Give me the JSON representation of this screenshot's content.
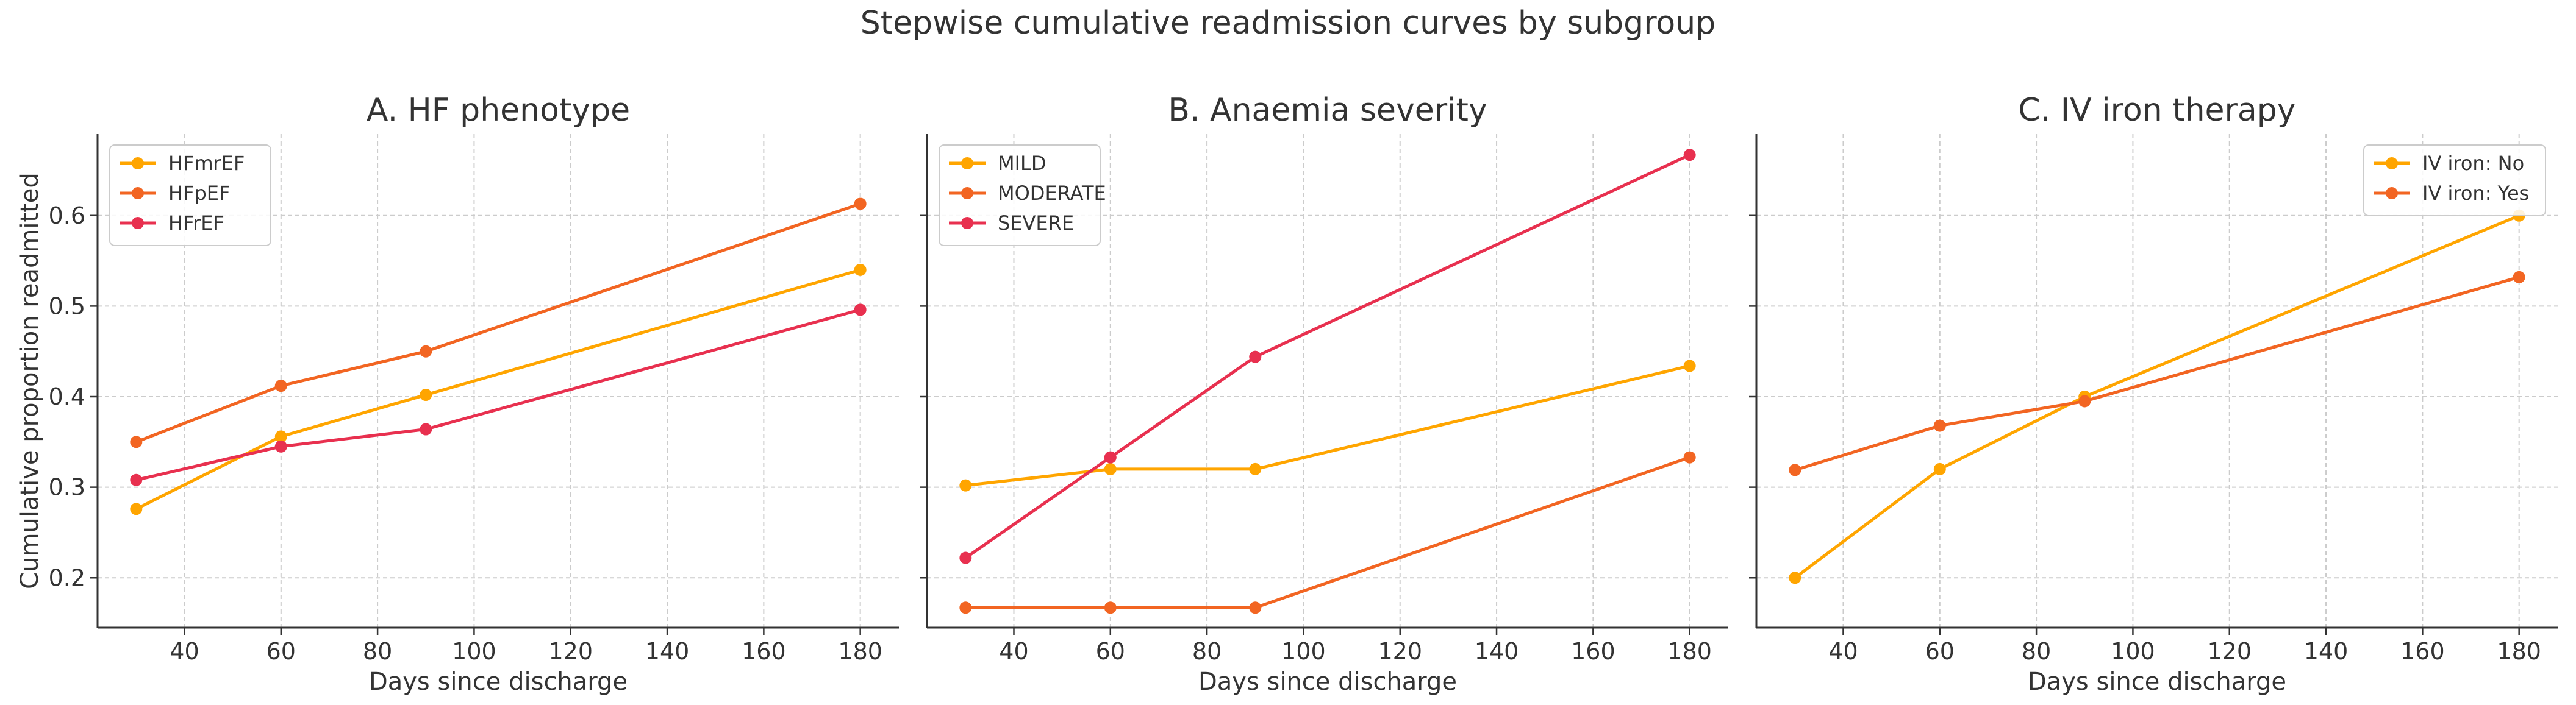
{
  "figure_title": "Stepwise cumulative readmission curves by subgroup",
  "chart_data": [
    {
      "type": "line",
      "title": "A. HF phenotype",
      "xlabel": "Days since discharge",
      "ylabel": "Cumulative proportion readmitted",
      "xlim": [
        22,
        188
      ],
      "ylim": [
        0.145,
        0.69
      ],
      "xticks": [
        40,
        60,
        80,
        100,
        120,
        140,
        160,
        180
      ],
      "yticks": [
        0.2,
        0.3,
        0.4,
        0.5,
        0.6
      ],
      "grid": true,
      "legend_loc": "upper-left",
      "x": [
        30,
        60,
        90,
        180
      ],
      "series": [
        {
          "name": "HFmrEF",
          "color": "#FFA500",
          "values": [
            0.276,
            0.356,
            0.402,
            0.54
          ]
        },
        {
          "name": "HFpEF",
          "color": "#F26522",
          "values": [
            0.35,
            0.412,
            0.45,
            0.613
          ]
        },
        {
          "name": "HFrEF",
          "color": "#E8304F",
          "values": [
            0.308,
            0.345,
            0.364,
            0.496
          ]
        }
      ]
    },
    {
      "type": "line",
      "title": "B. Anaemia severity",
      "xlabel": "Days since discharge",
      "ylabel": "",
      "xlim": [
        22,
        188
      ],
      "ylim": [
        0.145,
        0.69
      ],
      "xticks": [
        40,
        60,
        80,
        100,
        120,
        140,
        160,
        180
      ],
      "yticks": [
        0.2,
        0.3,
        0.4,
        0.5,
        0.6
      ],
      "grid": true,
      "legend_loc": "upper-left",
      "x": [
        30,
        60,
        90,
        180
      ],
      "series": [
        {
          "name": "MILD",
          "color": "#FFA500",
          "values": [
            0.302,
            0.32,
            0.32,
            0.434
          ]
        },
        {
          "name": "MODERATE",
          "color": "#F26522",
          "values": [
            0.167,
            0.167,
            0.167,
            0.333
          ]
        },
        {
          "name": "SEVERE",
          "color": "#E8304F",
          "values": [
            0.222,
            0.333,
            0.444,
            0.667
          ]
        }
      ]
    },
    {
      "type": "line",
      "title": "C. IV iron therapy",
      "xlabel": "Days since discharge",
      "ylabel": "",
      "xlim": [
        22,
        188
      ],
      "ylim": [
        0.145,
        0.69
      ],
      "xticks": [
        40,
        60,
        80,
        100,
        120,
        140,
        160,
        180
      ],
      "yticks": [
        0.2,
        0.3,
        0.4,
        0.5,
        0.6
      ],
      "grid": true,
      "legend_loc": "upper-right",
      "x": [
        30,
        60,
        90,
        180
      ],
      "series": [
        {
          "name": "IV iron: No",
          "color": "#FFA500",
          "values": [
            0.2,
            0.32,
            0.4,
            0.6
          ]
        },
        {
          "name": "IV iron: Yes",
          "color": "#F26522",
          "values": [
            0.319,
            0.368,
            0.395,
            0.532
          ]
        }
      ]
    }
  ]
}
